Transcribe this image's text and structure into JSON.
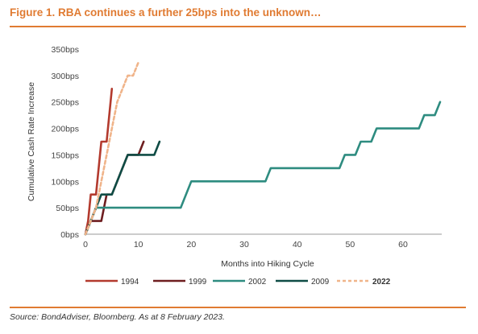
{
  "header": {
    "title": "Figure 1. RBA continues a further 25bps into the unknown…"
  },
  "footer": {
    "source": "Source: BondAdviser, Bloomberg. As at 8 February 2023."
  },
  "colors": {
    "accent": "#E07B32",
    "1994": "#B33A2E",
    "1999": "#6E1E20",
    "2002": "#2E8C80",
    "2009": "#0F4C45",
    "2022": "#F0B48A"
  },
  "chart_data": {
    "type": "line",
    "title": "",
    "xlabel": "Months into Hiking Cycle",
    "ylabel": "Cumulative Cash Rate Increase",
    "xlim": [
      0,
      67
    ],
    "ylim": [
      0,
      350
    ],
    "x_ticks": [
      0,
      10,
      20,
      30,
      40,
      50,
      60
    ],
    "y_ticks": [
      0,
      50,
      100,
      150,
      200,
      250,
      300,
      350
    ],
    "y_tick_labels": [
      "0bps",
      "50bps",
      "100bps",
      "150bps",
      "200bps",
      "250bps",
      "300bps",
      "350bps"
    ],
    "grid": false,
    "legend_position": "bottom",
    "series": [
      {
        "name": "1994",
        "color": "#B33A2E",
        "dash": false,
        "points": [
          [
            0,
            0
          ],
          [
            0.5,
            25
          ],
          [
            1,
            75
          ],
          [
            2,
            75
          ],
          [
            3,
            175
          ],
          [
            4,
            175
          ],
          [
            5,
            275
          ]
        ]
      },
      {
        "name": "1999",
        "color": "#6E1E20",
        "dash": false,
        "points": [
          [
            0,
            0
          ],
          [
            1,
            25
          ],
          [
            3,
            25
          ],
          [
            4,
            75
          ],
          [
            5,
            75
          ],
          [
            6,
            100
          ],
          [
            8,
            150
          ],
          [
            10,
            150
          ],
          [
            11,
            175
          ]
        ]
      },
      {
        "name": "2002",
        "color": "#2E8C80",
        "dash": false,
        "points": [
          [
            0,
            0
          ],
          [
            2,
            50
          ],
          [
            18,
            50
          ],
          [
            20,
            100
          ],
          [
            34,
            100
          ],
          [
            35,
            125
          ],
          [
            48,
            125
          ],
          [
            49,
            150
          ],
          [
            51,
            150
          ],
          [
            52,
            175
          ],
          [
            54,
            175
          ],
          [
            55,
            200
          ],
          [
            63,
            200
          ],
          [
            64,
            225
          ],
          [
            66,
            225
          ],
          [
            67,
            250
          ]
        ]
      },
      {
        "name": "2009",
        "color": "#0F4C45",
        "dash": false,
        "points": [
          [
            0,
            0
          ],
          [
            2,
            50
          ],
          [
            3,
            75
          ],
          [
            5,
            75
          ],
          [
            8,
            150
          ],
          [
            13,
            150
          ],
          [
            14,
            175
          ]
        ]
      },
      {
        "name": "2022",
        "color": "#F0B48A",
        "dash": true,
        "points": [
          [
            0,
            0
          ],
          [
            1,
            25
          ],
          [
            2,
            50
          ],
          [
            3,
            100
          ],
          [
            4,
            150
          ],
          [
            5,
            200
          ],
          [
            6,
            250
          ],
          [
            7,
            275
          ],
          [
            8,
            300
          ],
          [
            9,
            300
          ],
          [
            10,
            325
          ]
        ]
      }
    ]
  }
}
